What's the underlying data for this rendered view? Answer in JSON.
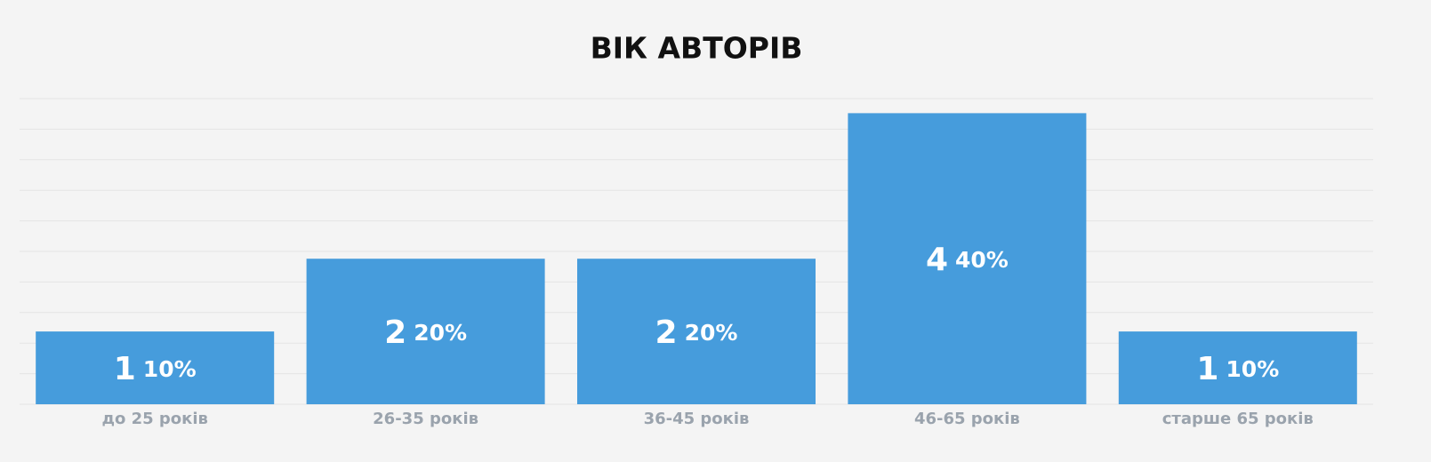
{
  "chart_data": {
    "type": "bar",
    "title": "ВІК АВТОРІВ",
    "categories": [
      "до 25 років",
      "26-35 років",
      "36-45 років",
      "46-65 років",
      "старше 65 років"
    ],
    "values": [
      1,
      2,
      2,
      4,
      1
    ],
    "shares": [
      10,
      20,
      20,
      40,
      10
    ],
    "share_labels": [
      "10%",
      "20%",
      "20%",
      "40%",
      "10%"
    ],
    "color": "#469cdc",
    "ylim": [
      0,
      4.2
    ],
    "yticks": [
      0,
      0.42,
      0.84,
      1.26,
      1.68,
      2.1,
      2.52,
      2.94,
      3.36,
      3.78,
      4.2
    ],
    "grid": true
  }
}
